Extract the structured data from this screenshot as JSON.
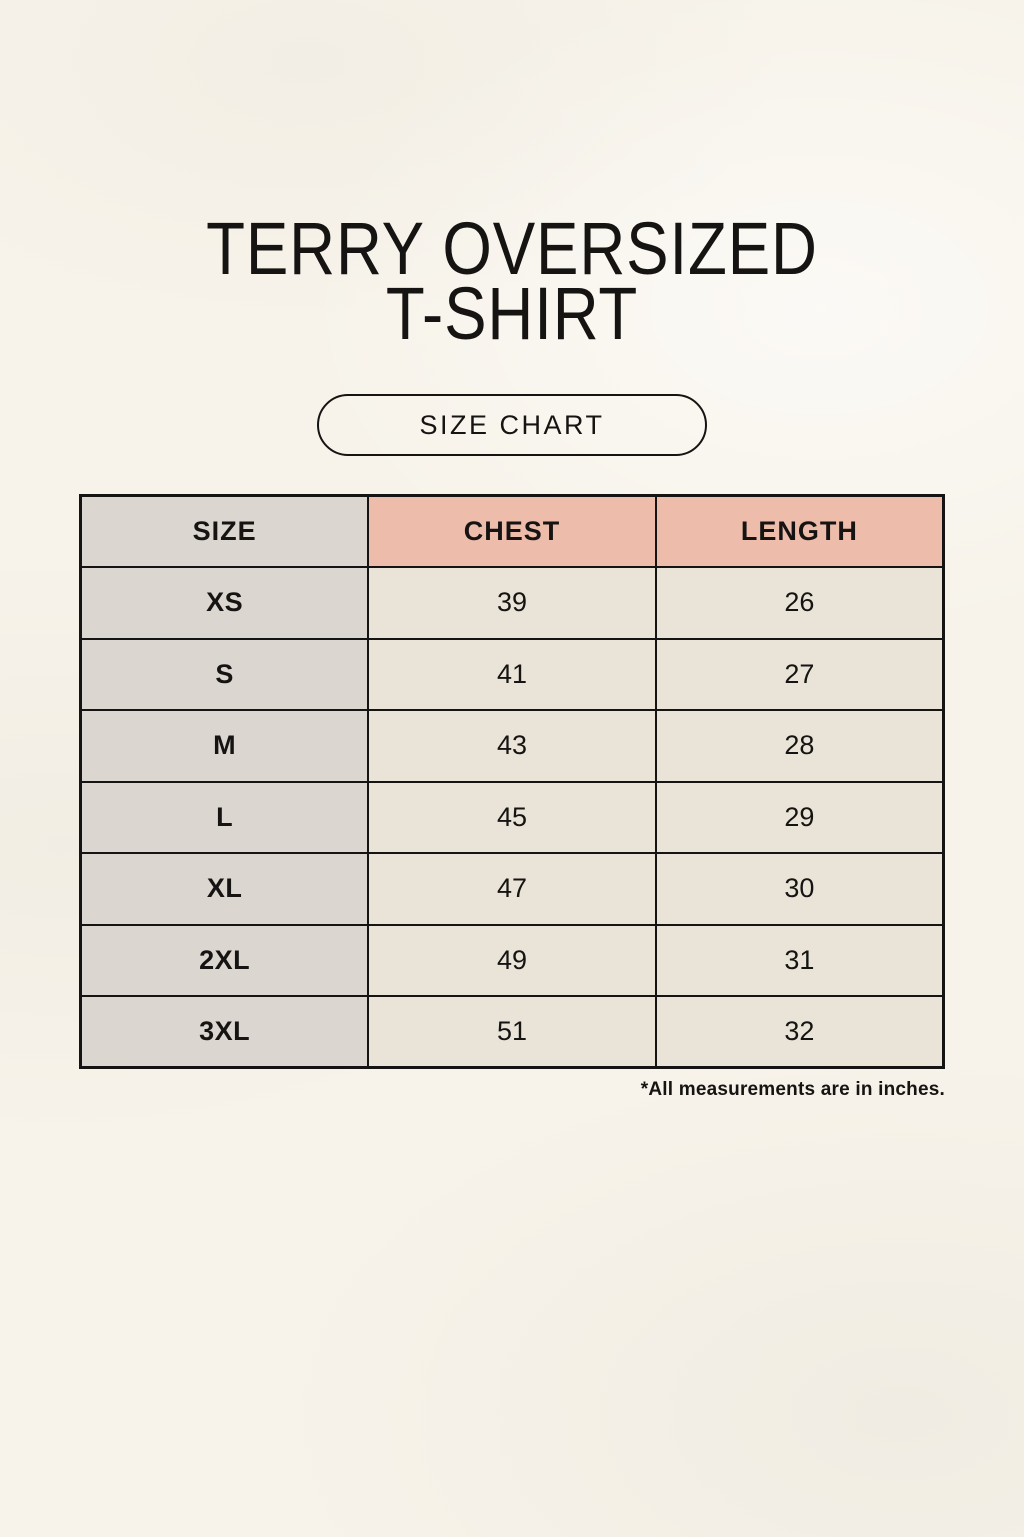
{
  "header": {
    "title_line1": "TERRY OVERSIZED",
    "title_line2": "T-SHIRT",
    "button_label": "SIZE CHART"
  },
  "chart_data": {
    "type": "table",
    "title": "SIZE CHART",
    "columns": [
      "SIZE",
      "CHEST",
      "LENGTH"
    ],
    "rows": [
      {
        "size": "XS",
        "chest": 39,
        "length": 26
      },
      {
        "size": "S",
        "chest": 41,
        "length": 27
      },
      {
        "size": "M",
        "chest": 43,
        "length": 28
      },
      {
        "size": "L",
        "chest": 45,
        "length": 29
      },
      {
        "size": "XL",
        "chest": 47,
        "length": 30
      },
      {
        "size": "2XL",
        "chest": 49,
        "length": 31
      },
      {
        "size": "3XL",
        "chest": 51,
        "length": 32
      }
    ],
    "units_note": "*All measurements are in inches.",
    "layout": {
      "grid": true,
      "header_row": true
    }
  },
  "colors": {
    "background": "#f7f3ea",
    "cell_gray": "#dcd6d0",
    "cell_pink": "#edbcab",
    "cell_cream": "#eae4d8",
    "border": "#161412",
    "text": "#161412"
  }
}
